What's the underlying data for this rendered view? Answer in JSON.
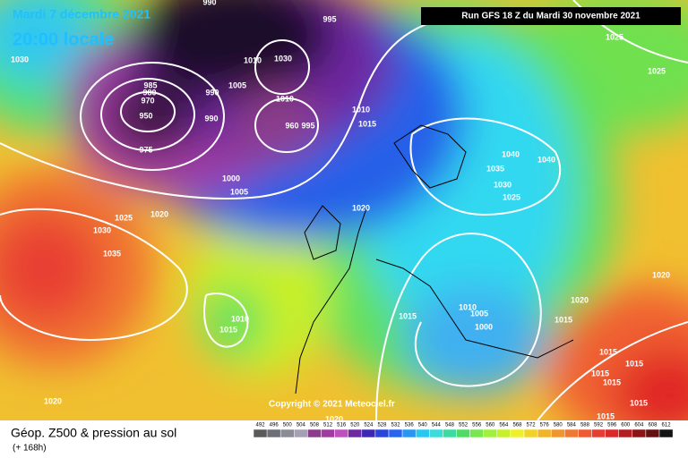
{
  "header": {
    "date": "Mardi 7 décembre 2021",
    "time": "20:00 locale",
    "run": "Run GFS 18 Z du Mardi 30 novembre 2021"
  },
  "copyright": "Copyright © 2021 Meteociel.fr",
  "footer": {
    "title": "Géop. Z500 & pression au sol",
    "lead": "(+ 168h)"
  },
  "legend": {
    "labels": [
      492,
      496,
      500,
      504,
      508,
      512,
      516,
      520,
      524,
      528,
      532,
      536,
      540,
      544,
      548,
      552,
      556,
      560,
      564,
      568,
      572,
      576,
      580,
      584,
      588,
      592,
      596,
      600,
      604,
      608,
      612
    ],
    "colors": [
      "#5a5a5a",
      "#6e6e78",
      "#8c8c96",
      "#a5a0b4",
      "#8c3c8c",
      "#a03ca0",
      "#be50be",
      "#6e28a0",
      "#3c28b4",
      "#2846dc",
      "#2864f0",
      "#2896f0",
      "#28c8f0",
      "#3cdcdc",
      "#3cdca0",
      "#50dc64",
      "#78e650",
      "#a0f03c",
      "#c8f028",
      "#f0f028",
      "#f0d228",
      "#f0b428",
      "#f0962d",
      "#f07832",
      "#f05a32",
      "#e63c32",
      "#dc2828",
      "#b41e1e",
      "#8c1414",
      "#641010",
      "#141414"
    ]
  },
  "isobar_labels": [
    "1030",
    "990",
    "995",
    "985",
    "980",
    "970",
    "950",
    "975",
    "990",
    "990",
    "1005",
    "1010",
    "1030",
    "1010",
    "960",
    "995",
    "1010",
    "1015",
    "1000",
    "1005",
    "1020",
    "1025",
    "1020",
    "1030",
    "1035",
    "1040",
    "1040",
    "1035",
    "1030",
    "1025",
    "1025",
    "1025",
    "1020",
    "1020",
    "1015",
    "1010",
    "1015",
    "1015",
    "1010",
    "1005",
    "1000",
    "1015",
    "1015",
    "1015",
    "1015",
    "1015",
    "1015",
    "1020",
    "1020"
  ]
}
